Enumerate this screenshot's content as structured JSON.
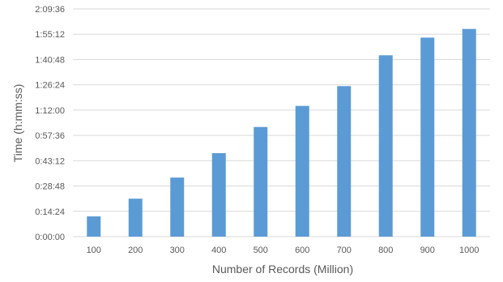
{
  "chart_data": {
    "type": "bar",
    "title": "",
    "xlabel": "Number of Records (Million)",
    "ylabel": "Time (h:mm:ss)",
    "categories": [
      "100",
      "200",
      "300",
      "400",
      "500",
      "600",
      "700",
      "800",
      "900",
      "1000"
    ],
    "series": [
      {
        "name": "",
        "values": [
          "0:11:31",
          "0:21:36",
          "0:33:37",
          "0:47:31",
          "1:02:24",
          "1:14:24",
          "1:25:40",
          "1:43:12",
          "1:53:16",
          "1:58:12"
        ],
        "color": "#5B9BD5"
      }
    ],
    "y_ticks": [
      "0:00:00",
      "0:14:24",
      "0:28:48",
      "0:43:12",
      "0:57:36",
      "1:12:00",
      "1:26:24",
      "1:40:48",
      "1:55:12",
      "2:09:36"
    ],
    "ylim": [
      "0:00:00",
      "2:09:36"
    ],
    "grid": true,
    "legend": "none"
  }
}
